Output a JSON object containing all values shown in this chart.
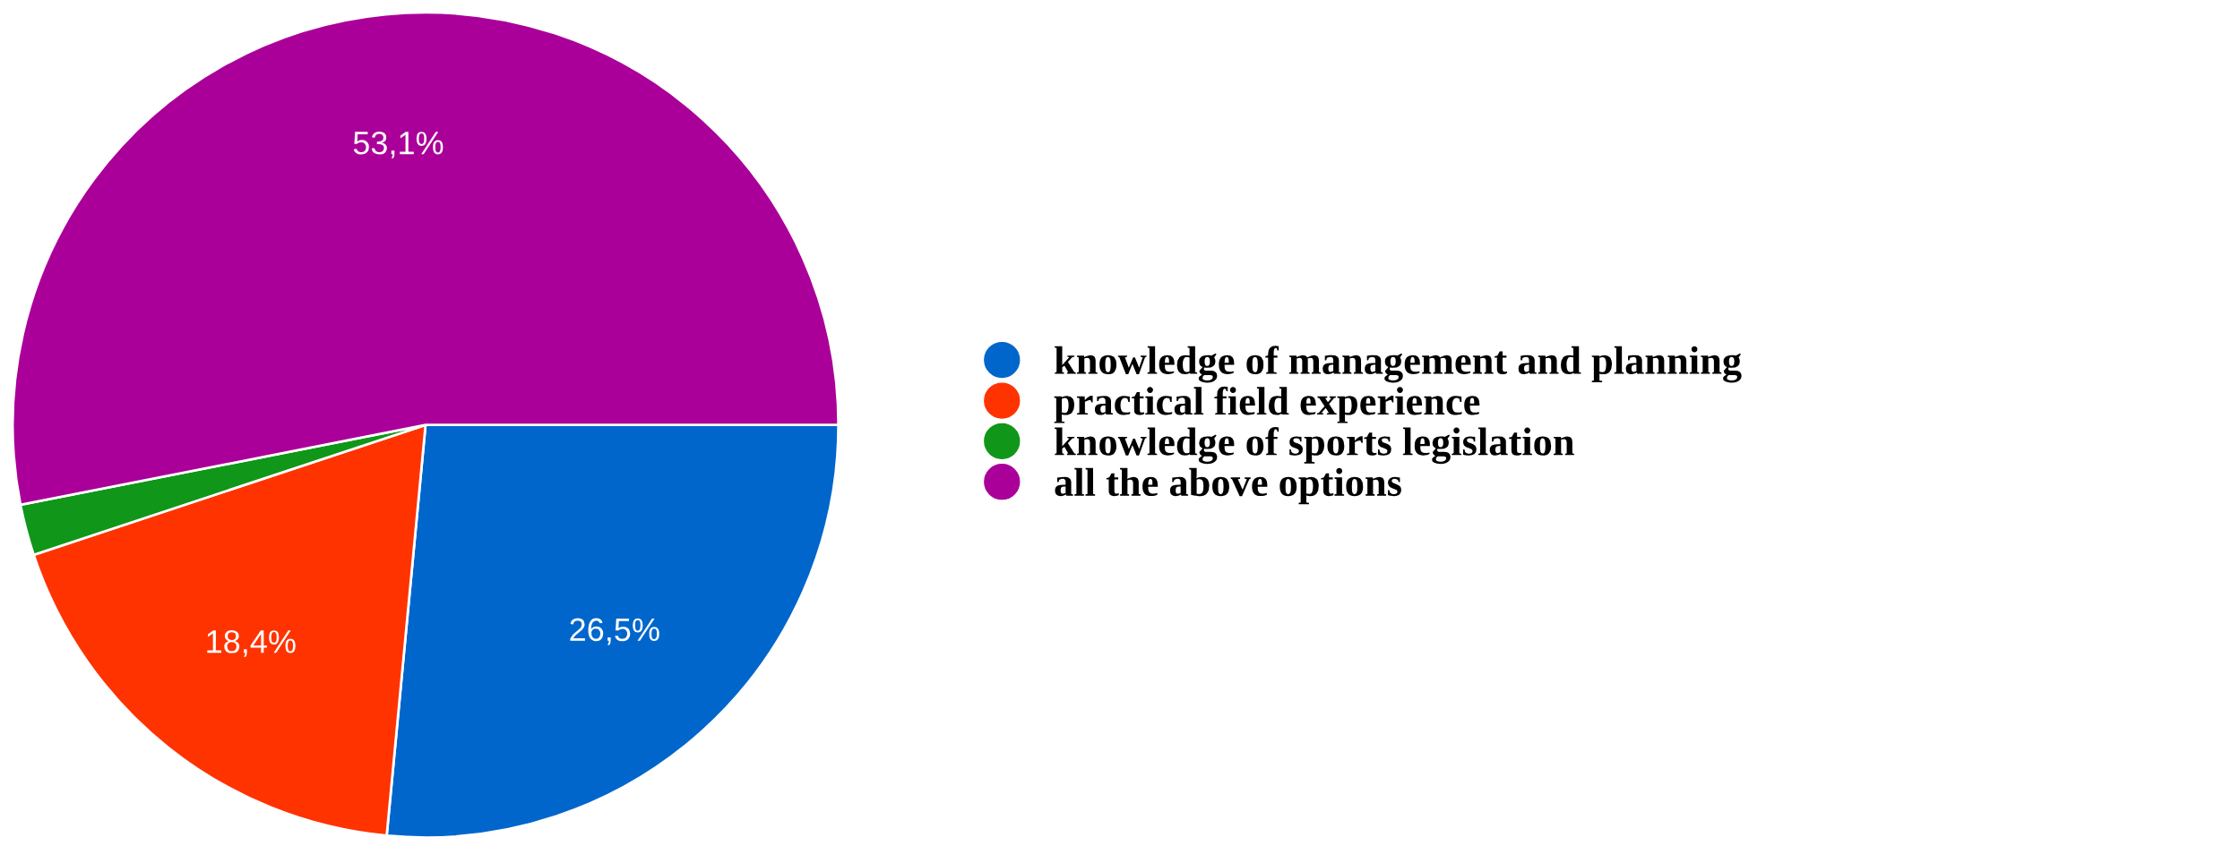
{
  "chart_data": {
    "type": "pie",
    "categories": [
      "knowledge of management and planning",
      "practical field experience",
      "knowledge of sports legislation",
      "all the above options"
    ],
    "values": [
      26.5,
      18.4,
      2.0,
      53.1
    ],
    "colors": [
      "#0066cc",
      "#ff3300",
      "#109618",
      "#aa0099"
    ],
    "value_labels": [
      "26,5%",
      "18,4%",
      null,
      "53,1%"
    ],
    "legend": "right"
  }
}
